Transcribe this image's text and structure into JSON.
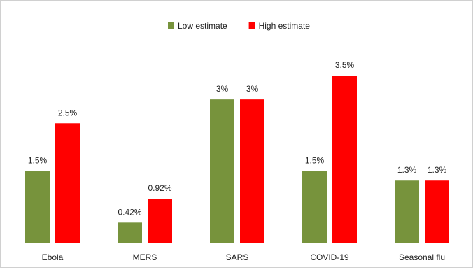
{
  "chart_data": {
    "type": "bar",
    "categories": [
      "Ebola",
      "MERS",
      "SARS",
      "COVID-19",
      "Seasonal flu"
    ],
    "series": [
      {
        "name": "Low estimate",
        "values": [
          1.5,
          0.42,
          3,
          1.5,
          1.3
        ],
        "labels": [
          "1.5%",
          "0.42%",
          "3%",
          "1.5%",
          "1.3%"
        ],
        "color": "#77933c"
      },
      {
        "name": "High estimate",
        "values": [
          2.5,
          0.92,
          3,
          3.5,
          1.3
        ],
        "labels": [
          "2.5%",
          "0.92%",
          "3%",
          "3.5%",
          "1.3%"
        ],
        "color": "#ff0000"
      }
    ],
    "title": "",
    "xlabel": "",
    "ylabel": "",
    "ylim": [
      0,
      3.5
    ],
    "grid": false,
    "legend_position": "top-center"
  }
}
